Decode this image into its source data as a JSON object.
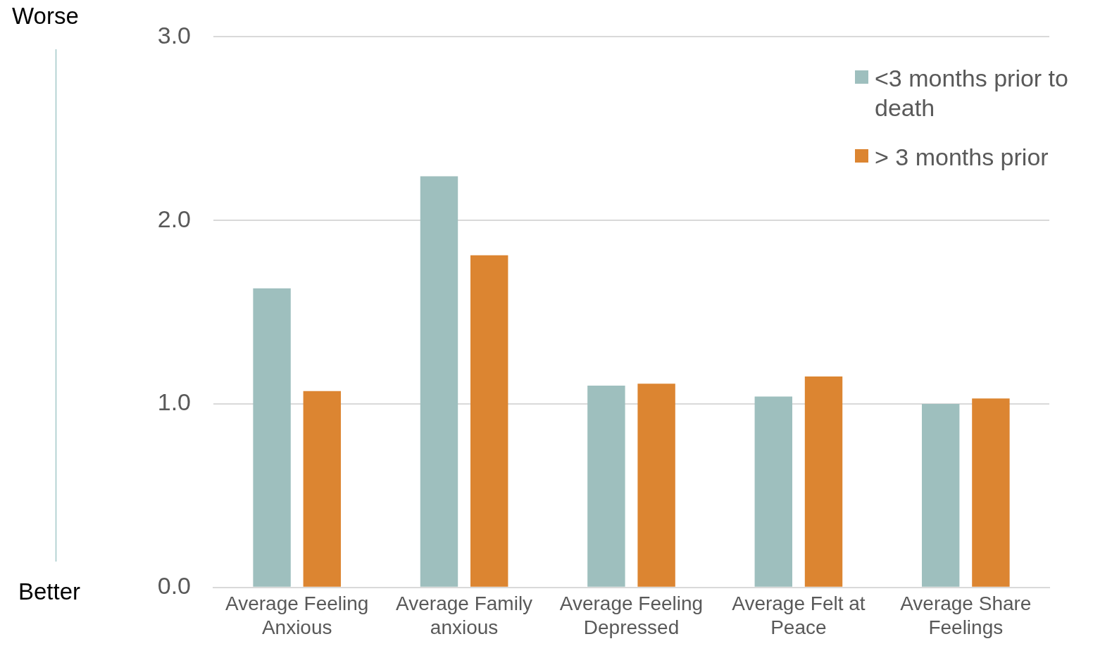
{
  "chart_data": {
    "type": "bar",
    "categories": [
      "Average Feeling Anxious",
      "Average Family anxious",
      "Average Feeling Depressed",
      "Average Felt at Peace",
      "Average Share Feelings"
    ],
    "series": [
      {
        "name": "<3 months prior to death",
        "color": "#9ebfbe",
        "values": [
          1.63,
          2.24,
          1.1,
          1.04,
          1.0
        ]
      },
      {
        "name": "> 3 months prior",
        "color": "#dc8531",
        "values": [
          1.07,
          1.81,
          1.11,
          1.15,
          1.03
        ]
      }
    ],
    "ylim": [
      0,
      3
    ],
    "yticks": [
      {
        "value": 0,
        "label": "0.0"
      },
      {
        "value": 1,
        "label": "1.0"
      },
      {
        "value": 2,
        "label": "2.0"
      },
      {
        "value": 3,
        "label": "3.0"
      }
    ],
    "grid": "y",
    "legend": "top right",
    "annotations": [
      "Worse",
      "Better"
    ]
  }
}
